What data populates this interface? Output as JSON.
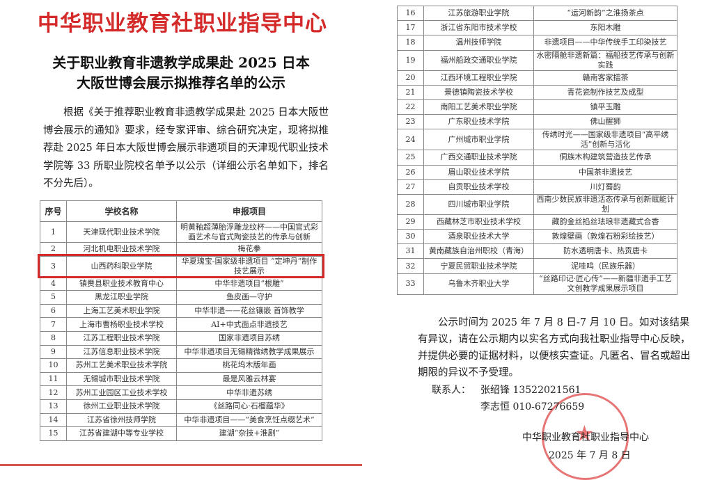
{
  "header": {
    "org_title": "中华职业教育社职业指导中心",
    "subtitle_line1": "关于职业教育非遗教学成果赴 2025 日本",
    "subtitle_line2": "大阪世博会展示拟推荐名单的公示"
  },
  "intro": "根据《关于推荐职业教育非遗教学成果赴 2025 日本大阪世博会展示的通知》要求，经专家评审、综合研究决定，现将拟推荐赴 2025 年日本大阪世博会展示非遗项目的天津现代职业技术学院等 33 所职业院校名单予以公示（详细公示名单如下，排名不分先后）。",
  "table": {
    "headers": [
      "序号",
      "学校名称",
      "申报项目"
    ],
    "rows_left": [
      [
        "1",
        "天津现代职业技术学院",
        "明黄釉超薄胎浮雕龙纹杯——中国官式彩画艺术与官式陶瓷技艺的传承与创新"
      ],
      [
        "2",
        "河北机电职业技术学院",
        "梅花拳"
      ],
      [
        "3",
        "山西药科职业学院",
        "华夏瑰宝-国家级非遗项目 “定坤丹”制作技艺展示"
      ],
      [
        "4",
        "镇赉县职业技术教育中心",
        "中华非遗项目“根雕”"
      ],
      [
        "5",
        "黑龙江职业学院",
        "鱼皮画—守护"
      ],
      [
        "6",
        "上海工艺美术职业学院",
        "中华非遗——花丝镶嵌 首饰教学"
      ],
      [
        "7",
        "上海市曹杨职业技术学校",
        "AI+中式面点非遗技艺"
      ],
      [
        "8",
        "江苏工程职业技术学院",
        "国家非遗项目苏绣"
      ],
      [
        "9",
        "江苏信息职业技术学院",
        "中华非遗项目无锡精微绣教学成果展示"
      ],
      [
        "10",
        "苏州工艺美术职业技术学院",
        "桃花坞木版年画"
      ],
      [
        "11",
        "无锡城市职业技术学院",
        "最是风雅云林宴"
      ],
      [
        "12",
        "苏州工业园区工业技术学校",
        "中华非遗苏绣"
      ],
      [
        "13",
        "徐州工业职业技术学院",
        "《丝路同心·石榴蕴华》"
      ],
      [
        "14",
        "江苏省徐州技师学院",
        "中华非遗项目——“美食烹饪点缀艺术”"
      ],
      [
        "15",
        "江苏省建湖中等专业学校",
        "建湖“杂技+淮剧”"
      ]
    ],
    "rows_right": [
      [
        "16",
        "江苏旅游职业学院",
        "“运河新韵”之淮扬茶点"
      ],
      [
        "17",
        "浙江省东阳市技术学校",
        "东阳木雕"
      ],
      [
        "18",
        "温州技师学院",
        "非遗项目——中华传统手工印染技艺"
      ],
      [
        "19",
        "福州船政交通职业学院",
        "水密隔舱非遗新篇：福船技艺传承与创新实践"
      ],
      [
        "20",
        "江西环境工程职业学院",
        "赣南客家擂茶"
      ],
      [
        "21",
        "景德镇陶瓷技术学校",
        "青花瓷制作技艺及成型"
      ],
      [
        "22",
        "南阳工艺美术职业学院",
        "镇平玉雕"
      ],
      [
        "23",
        "广东职业技术学院",
        "佛山醒狮"
      ],
      [
        "24",
        "广州城市职业学院",
        "传绣时光——国家级非遗项目“高平绣活”创新与活化"
      ],
      [
        "25",
        "广西交通职业技术学院",
        "侗族木构建筑营造技艺传承"
      ],
      [
        "26",
        "眉山职业技术学院",
        "中国茶非遗技艺"
      ],
      [
        "27",
        "自贡职业技术学校",
        "川灯蜀韵"
      ],
      [
        "28",
        "四川城市职业学院",
        "西南少数民族非遗活态传承与创新赋能计划"
      ],
      [
        "29",
        "西藏林芝市职业技术学校",
        "藏韵金丝掐丝珐琅非遗藏式合香"
      ],
      [
        "30",
        "酒泉职业技术大学",
        "敦煌壁画（敦煌石粉彩绘技艺）"
      ],
      [
        "31",
        "黄南藏族自治州职校（青海）",
        "防水透明唐卡、热贡唐卡"
      ],
      [
        "32",
        "宁夏民贸职业技术学院",
        "泥哇呜（民族乐器）"
      ],
      [
        "33",
        "乌鲁木齐职业大学",
        "“丝路印记·匠心传”——新疆非遗手工艺文创教学成果展示项目"
      ]
    ]
  },
  "notice": "公示时间为 2025 年 7 月 8 日-7 月 10 日。如对该结果有异议，请在公示期内以实名方式向我社职业指导中心反映，并提供必要的证据材料，以便核实查证。凡匿名、冒名或超出期限的异议不予受理。",
  "contacts": {
    "label": "联系人：",
    "person1": "张绍锋 13522021561",
    "person2": "李志恒 010-67276659"
  },
  "signature": {
    "org": "中华职业教育社职业指导中心",
    "date": "2025 年 7 月 8 日"
  },
  "seal": {
    "text": "中华职业教育社职业指导中心",
    "color": "#e04848"
  },
  "colors": {
    "title_red": "#d42a2a",
    "highlight": "#d42a2a"
  }
}
